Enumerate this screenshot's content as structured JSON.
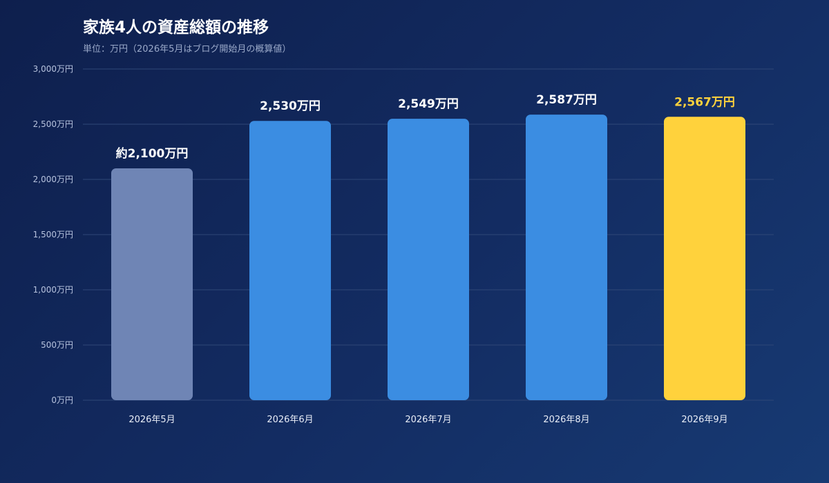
{
  "title": "家族4人の資産総額の推移",
  "subtitle": "単位：万円（2026年5月はブログ開始月の概算値）",
  "colors": {
    "estimate_bar": "#6f85b5",
    "bar": "#3b8de2",
    "highlight_bar": "#ffd23c",
    "label": "#ffffff",
    "highlight_label": "#ffd23c",
    "grid": "#2f4777"
  },
  "chart_data": {
    "type": "bar",
    "title": "家族4人の資産総額の推移",
    "subtitle": "単位：万円（2026年5月はブログ開始月の概算値）",
    "categories": [
      "2026年5月",
      "2026年6月",
      "2026年7月",
      "2026年8月",
      "2026年9月"
    ],
    "values": [
      2100,
      2530,
      2549,
      2587,
      2567
    ],
    "value_labels": [
      "約2,100万円",
      "2,530万円",
      "2,549万円",
      "2,587万円",
      "2,567万円"
    ],
    "bar_styles": [
      "estimate",
      "normal",
      "normal",
      "normal",
      "highlight"
    ],
    "ylim": [
      0,
      3000
    ],
    "yticks": [
      0,
      500,
      1000,
      1500,
      2000,
      2500,
      3000
    ],
    "ytick_labels": [
      "0万円",
      "500万円",
      "1,000万円",
      "1,500万円",
      "2,000万円",
      "2,500万円",
      "3,000万円"
    ],
    "grid": true,
    "xlabel": "",
    "ylabel": ""
  }
}
